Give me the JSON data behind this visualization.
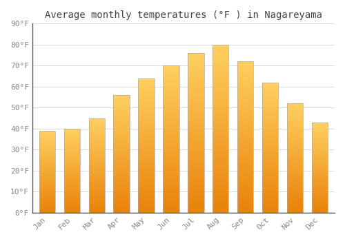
{
  "title": "Average monthly temperatures (°F ) in Nagareyama",
  "months": [
    "Jan",
    "Feb",
    "Mar",
    "Apr",
    "May",
    "Jun",
    "Jul",
    "Aug",
    "Sep",
    "Oct",
    "Nov",
    "Dec"
  ],
  "values": [
    39,
    40,
    45,
    56,
    64,
    70,
    76,
    80,
    72,
    62,
    52,
    43
  ],
  "bar_color_bottom": "#E8820A",
  "bar_color_top": "#FFD060",
  "ylim": [
    0,
    90
  ],
  "yticks": [
    0,
    10,
    20,
    30,
    40,
    50,
    60,
    70,
    80,
    90
  ],
  "ytick_labels": [
    "0°F",
    "10°F",
    "20°F",
    "30°F",
    "40°F",
    "50°F",
    "60°F",
    "70°F",
    "80°F",
    "90°F"
  ],
  "background_color": "#FFFFFF",
  "grid_color": "#DDDDDD",
  "title_fontsize": 10,
  "tick_fontsize": 8,
  "tick_color": "#888888",
  "bar_edge_color": "#AAAAAA",
  "bar_width": 0.65
}
